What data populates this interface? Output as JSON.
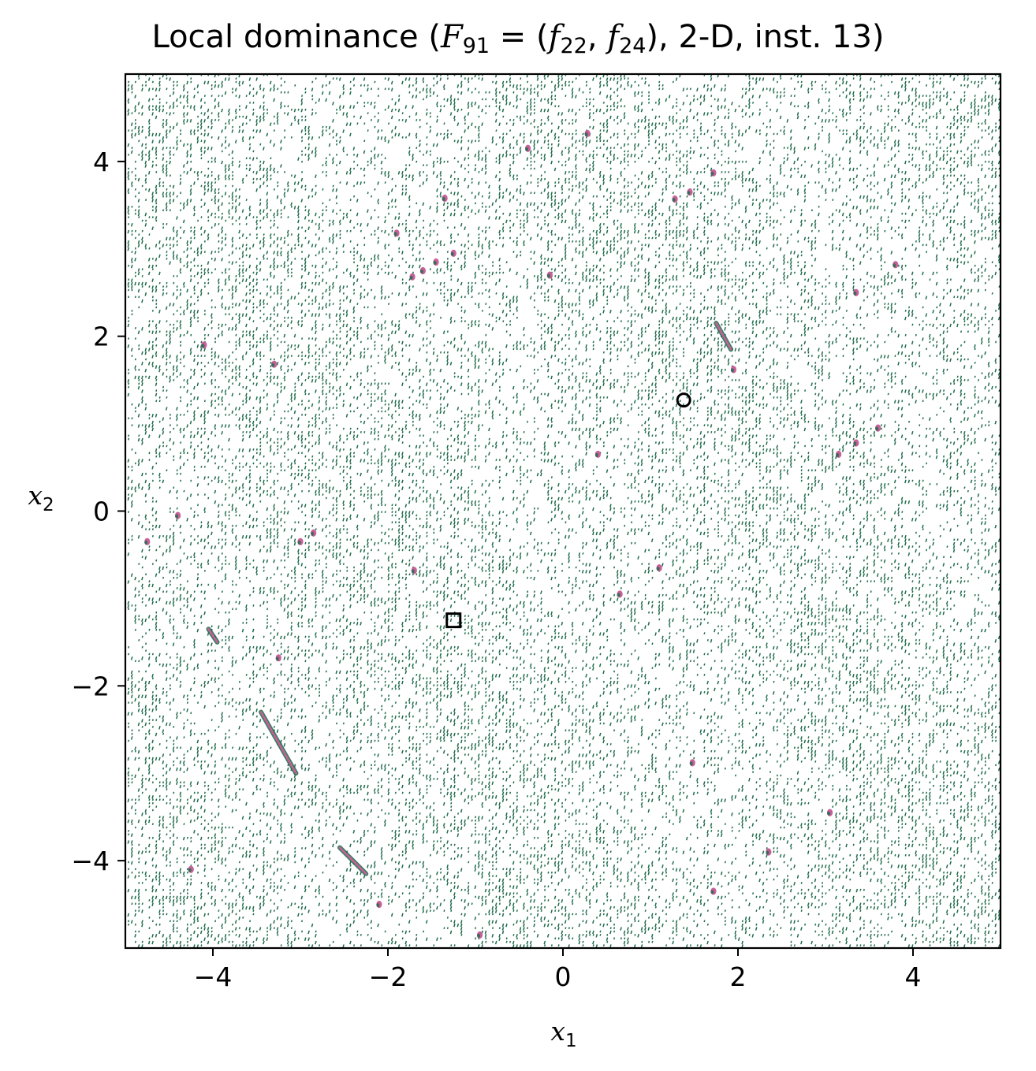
{
  "chart_data": {
    "type": "heatmap",
    "title_prefix": "Local dominance (",
    "title_math_F": "F",
    "title_math_F_sub": "91",
    "title_math_eq": " = (",
    "title_math_f1": "f",
    "title_math_f1_sub": "22",
    "title_math_sep": ", ",
    "title_math_f2": "f",
    "title_math_f2_sub": "24",
    "title_suffix": "), 2-D, inst. 13)",
    "xlabel": "x",
    "xlabel_sub": "1",
    "ylabel": "x",
    "ylabel_sub": "2",
    "xlim": [
      -5,
      5
    ],
    "ylim": [
      -5,
      5
    ],
    "xticks": [
      -4,
      -2,
      0,
      2,
      4
    ],
    "yticks": [
      -4,
      -2,
      0,
      2,
      4
    ],
    "xtick_labels": [
      "−4",
      "−2",
      "0",
      "2",
      "4"
    ],
    "ytick_labels": [
      "−4",
      "−2",
      "0",
      "2",
      "4"
    ],
    "colors": {
      "dominated": "#1f6b4b",
      "local_efficient": "#c8609a",
      "background": "#ffffff"
    },
    "markers": [
      {
        "name": "optimum f22",
        "shape": "circle",
        "x": 1.38,
        "y": 1.27
      },
      {
        "name": "optimum f24",
        "shape": "square",
        "x": -1.25,
        "y": -1.25
      }
    ],
    "efficient_streaks": [
      {
        "x1": -3.45,
        "y1": -2.3,
        "x2": -3.05,
        "y2": -3.0
      },
      {
        "x1": -2.55,
        "y1": -3.85,
        "x2": -2.25,
        "y2": -4.15
      },
      {
        "x1": -4.05,
        "y1": -1.35,
        "x2": -3.95,
        "y2": -1.5
      },
      {
        "x1": 1.75,
        "y1": 2.15,
        "x2": 1.92,
        "y2": 1.85
      }
    ],
    "efficient_spots": [
      [
        -0.4,
        4.15
      ],
      [
        0.28,
        4.32
      ],
      [
        -1.35,
        3.58
      ],
      [
        1.28,
        3.57
      ],
      [
        1.45,
        3.65
      ],
      [
        1.72,
        3.87
      ],
      [
        -1.9,
        3.18
      ],
      [
        -1.25,
        2.95
      ],
      [
        -1.45,
        2.85
      ],
      [
        -1.6,
        2.75
      ],
      [
        -1.72,
        2.68
      ],
      [
        -0.15,
        2.7
      ],
      [
        -4.1,
        1.9
      ],
      [
        -3.3,
        1.68
      ],
      [
        3.15,
        0.65
      ],
      [
        3.35,
        0.78
      ],
      [
        3.6,
        0.95
      ],
      [
        0.4,
        0.65
      ],
      [
        3.8,
        2.82
      ],
      [
        -4.4,
        -0.05
      ],
      [
        -2.85,
        -0.25
      ],
      [
        -3.0,
        -0.35
      ],
      [
        -1.7,
        -0.68
      ],
      [
        1.1,
        -0.65
      ],
      [
        0.65,
        -0.95
      ],
      [
        -3.25,
        -1.68
      ],
      [
        1.48,
        -2.88
      ],
      [
        3.05,
        -3.45
      ],
      [
        2.35,
        -3.9
      ],
      [
        1.72,
        -4.35
      ],
      [
        -0.95,
        -4.85
      ],
      [
        -4.25,
        -4.1
      ],
      [
        -2.1,
        -4.5
      ],
      [
        -4.75,
        -0.35
      ],
      [
        3.35,
        2.5
      ],
      [
        1.95,
        1.62
      ]
    ]
  }
}
